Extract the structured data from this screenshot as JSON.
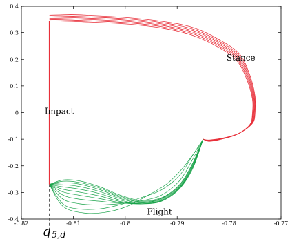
{
  "chart_data": {
    "type": "line",
    "title": "",
    "xlabel": "",
    "ylabel": "",
    "xlim": [
      -0.82,
      -0.77
    ],
    "ylim": [
      -0.4,
      0.4
    ],
    "xticks": [
      -0.82,
      -0.81,
      -0.8,
      -0.79,
      -0.78,
      -0.77
    ],
    "xtick_labels": [
      "-0.82",
      "-0.81",
      "-0.8",
      "-0.79",
      "-0.78",
      "-0.77"
    ],
    "yticks": [
      -0.4,
      -0.3,
      -0.2,
      -0.1,
      0,
      0.1,
      0.2,
      0.3,
      0.4
    ],
    "ytick_labels": [
      "-0.4",
      "-0.3",
      "-0.2",
      "-0.1",
      "0",
      "0.1",
      "0.2",
      "0.3",
      "0.4"
    ],
    "grid": false,
    "colors": {
      "stance": "#e8303a",
      "flight": "#1aa34a",
      "impact": "#e8303a",
      "marker": "#555555"
    },
    "annotations": [
      {
        "text": "Stance",
        "x": -0.7805,
        "y": 0.195
      },
      {
        "text": "Impact",
        "x": -0.8155,
        "y": -0.005
      },
      {
        "text": "Flight",
        "x": -0.7958,
        "y": -0.383
      }
    ],
    "impact_line": {
      "x": -0.8146,
      "y_from": -0.27,
      "y_to": 0.345
    },
    "marker": {
      "x": -0.8146,
      "y_from": -0.27,
      "y_to": -0.4,
      "label_main": "q",
      "label_sub": "5,d"
    },
    "stance_series": [
      {
        "name": "",
        "points": [
          [
            -0.8146,
            0.345
          ],
          [
            -0.808,
            0.341
          ],
          [
            -0.8,
            0.333
          ],
          [
            -0.793,
            0.318
          ],
          [
            -0.787,
            0.29
          ],
          [
            -0.782,
            0.245
          ],
          [
            -0.7785,
            0.195
          ],
          [
            -0.7765,
            0.12
          ],
          [
            -0.7755,
            0.05
          ],
          [
            -0.7755,
            0.0
          ],
          [
            -0.776,
            -0.045
          ],
          [
            -0.7785,
            -0.082
          ],
          [
            -0.7815,
            -0.1
          ],
          [
            -0.7838,
            -0.108
          ],
          [
            -0.785,
            -0.1
          ]
        ]
      },
      {
        "name": "",
        "points": [
          [
            -0.8146,
            0.35
          ],
          [
            -0.808,
            0.346
          ],
          [
            -0.8,
            0.338
          ],
          [
            -0.793,
            0.323
          ],
          [
            -0.787,
            0.296
          ],
          [
            -0.782,
            0.251
          ],
          [
            -0.7784,
            0.2
          ],
          [
            -0.7764,
            0.124
          ],
          [
            -0.7754,
            0.052
          ],
          [
            -0.7754,
            0.0
          ],
          [
            -0.7759,
            -0.044
          ],
          [
            -0.7784,
            -0.081
          ],
          [
            -0.7814,
            -0.099
          ],
          [
            -0.7838,
            -0.107
          ],
          [
            -0.785,
            -0.1
          ]
        ]
      },
      {
        "name": "",
        "points": [
          [
            -0.8146,
            0.355
          ],
          [
            -0.808,
            0.351
          ],
          [
            -0.8,
            0.343
          ],
          [
            -0.793,
            0.328
          ],
          [
            -0.787,
            0.302
          ],
          [
            -0.782,
            0.257
          ],
          [
            -0.7783,
            0.205
          ],
          [
            -0.7763,
            0.128
          ],
          [
            -0.7753,
            0.054
          ],
          [
            -0.7753,
            0.0
          ],
          [
            -0.7758,
            -0.043
          ],
          [
            -0.7783,
            -0.08
          ],
          [
            -0.7813,
            -0.098
          ],
          [
            -0.7838,
            -0.106
          ],
          [
            -0.785,
            -0.1
          ]
        ]
      },
      {
        "name": "",
        "points": [
          [
            -0.8146,
            0.36
          ],
          [
            -0.808,
            0.356
          ],
          [
            -0.8,
            0.348
          ],
          [
            -0.793,
            0.333
          ],
          [
            -0.787,
            0.308
          ],
          [
            -0.782,
            0.263
          ],
          [
            -0.7782,
            0.21
          ],
          [
            -0.7762,
            0.132
          ],
          [
            -0.7752,
            0.056
          ],
          [
            -0.7752,
            0.0
          ],
          [
            -0.7757,
            -0.042
          ],
          [
            -0.7782,
            -0.079
          ],
          [
            -0.7812,
            -0.097
          ],
          [
            -0.7838,
            -0.105
          ],
          [
            -0.785,
            -0.1
          ]
        ]
      },
      {
        "name": "",
        "points": [
          [
            -0.8146,
            0.365
          ],
          [
            -0.808,
            0.361
          ],
          [
            -0.8,
            0.353
          ],
          [
            -0.793,
            0.338
          ],
          [
            -0.787,
            0.314
          ],
          [
            -0.782,
            0.269
          ],
          [
            -0.7781,
            0.215
          ],
          [
            -0.7761,
            0.136
          ],
          [
            -0.7751,
            0.058
          ],
          [
            -0.7751,
            0.0
          ],
          [
            -0.7756,
            -0.041
          ],
          [
            -0.7781,
            -0.078
          ],
          [
            -0.7811,
            -0.096
          ],
          [
            -0.7838,
            -0.104
          ],
          [
            -0.785,
            -0.1
          ]
        ]
      },
      {
        "name": "",
        "points": [
          [
            -0.8146,
            0.37
          ],
          [
            -0.808,
            0.366
          ],
          [
            -0.8,
            0.358
          ],
          [
            -0.793,
            0.343
          ],
          [
            -0.787,
            0.32
          ],
          [
            -0.782,
            0.275
          ],
          [
            -0.778,
            0.22
          ],
          [
            -0.776,
            0.14
          ],
          [
            -0.775,
            0.06
          ],
          [
            -0.775,
            0.0
          ],
          [
            -0.7755,
            -0.04
          ],
          [
            -0.778,
            -0.077
          ],
          [
            -0.781,
            -0.095
          ],
          [
            -0.7838,
            -0.103
          ],
          [
            -0.785,
            -0.1
          ]
        ]
      }
    ],
    "flight_series": [
      {
        "name": "",
        "points": [
          [
            -0.8146,
            -0.27
          ],
          [
            -0.812,
            -0.253
          ],
          [
            -0.809,
            -0.256
          ],
          [
            -0.805,
            -0.278
          ],
          [
            -0.801,
            -0.31
          ],
          [
            -0.797,
            -0.33
          ],
          [
            -0.793,
            -0.32
          ],
          [
            -0.7895,
            -0.27
          ],
          [
            -0.787,
            -0.19
          ],
          [
            -0.785,
            -0.1
          ]
        ]
      },
      {
        "name": "",
        "points": [
          [
            -0.8146,
            -0.27
          ],
          [
            -0.812,
            -0.258
          ],
          [
            -0.809,
            -0.262
          ],
          [
            -0.805,
            -0.283
          ],
          [
            -0.801,
            -0.314
          ],
          [
            -0.797,
            -0.333
          ],
          [
            -0.793,
            -0.323
          ],
          [
            -0.7895,
            -0.274
          ],
          [
            -0.787,
            -0.195
          ],
          [
            -0.785,
            -0.1
          ]
        ]
      },
      {
        "name": "",
        "points": [
          [
            -0.8146,
            -0.27
          ],
          [
            -0.812,
            -0.264
          ],
          [
            -0.809,
            -0.268
          ],
          [
            -0.805,
            -0.289
          ],
          [
            -0.801,
            -0.318
          ],
          [
            -0.797,
            -0.336
          ],
          [
            -0.793,
            -0.326
          ],
          [
            -0.7895,
            -0.278
          ],
          [
            -0.787,
            -0.2
          ],
          [
            -0.785,
            -0.1
          ]
        ]
      },
      {
        "name": "",
        "points": [
          [
            -0.8146,
            -0.27
          ],
          [
            -0.812,
            -0.271
          ],
          [
            -0.809,
            -0.277
          ],
          [
            -0.805,
            -0.296
          ],
          [
            -0.801,
            -0.323
          ],
          [
            -0.797,
            -0.339
          ],
          [
            -0.793,
            -0.329
          ],
          [
            -0.7895,
            -0.282
          ],
          [
            -0.787,
            -0.205
          ],
          [
            -0.785,
            -0.1
          ]
        ]
      },
      {
        "name": "",
        "points": [
          [
            -0.8146,
            -0.27
          ],
          [
            -0.812,
            -0.279
          ],
          [
            -0.809,
            -0.287
          ],
          [
            -0.805,
            -0.304
          ],
          [
            -0.801,
            -0.329
          ],
          [
            -0.797,
            -0.342
          ],
          [
            -0.793,
            -0.332
          ],
          [
            -0.7895,
            -0.285
          ],
          [
            -0.787,
            -0.21
          ],
          [
            -0.785,
            -0.1
          ]
        ]
      },
      {
        "name": "",
        "points": [
          [
            -0.8146,
            -0.27
          ],
          [
            -0.812,
            -0.288
          ],
          [
            -0.809,
            -0.298
          ],
          [
            -0.805,
            -0.313
          ],
          [
            -0.801,
            -0.334
          ],
          [
            -0.797,
            -0.343
          ],
          [
            -0.793,
            -0.333
          ],
          [
            -0.7895,
            -0.285
          ],
          [
            -0.787,
            -0.205
          ],
          [
            -0.785,
            -0.1
          ]
        ]
      },
      {
        "name": "",
        "points": [
          [
            -0.8146,
            -0.27
          ],
          [
            -0.812,
            -0.298
          ],
          [
            -0.809,
            -0.31
          ],
          [
            -0.805,
            -0.323
          ],
          [
            -0.801,
            -0.338
          ],
          [
            -0.797,
            -0.343
          ],
          [
            -0.793,
            -0.33
          ],
          [
            -0.7895,
            -0.28
          ],
          [
            -0.787,
            -0.2
          ],
          [
            -0.785,
            -0.1
          ]
        ]
      },
      {
        "name": "",
        "points": [
          [
            -0.8146,
            -0.27
          ],
          [
            -0.812,
            -0.31
          ],
          [
            -0.809,
            -0.325
          ],
          [
            -0.805,
            -0.333
          ],
          [
            -0.801,
            -0.34
          ],
          [
            -0.797,
            -0.34
          ],
          [
            -0.793,
            -0.322
          ],
          [
            -0.7895,
            -0.27
          ],
          [
            -0.787,
            -0.19
          ],
          [
            -0.785,
            -0.1
          ]
        ]
      },
      {
        "name": "",
        "points": [
          [
            -0.8146,
            -0.27
          ],
          [
            -0.812,
            -0.325
          ],
          [
            -0.809,
            -0.342
          ],
          [
            -0.805,
            -0.347
          ],
          [
            -0.801,
            -0.342
          ],
          [
            -0.797,
            -0.332
          ],
          [
            -0.793,
            -0.31
          ],
          [
            -0.7895,
            -0.255
          ],
          [
            -0.787,
            -0.175
          ],
          [
            -0.785,
            -0.1
          ]
        ]
      },
      {
        "name": "",
        "points": [
          [
            -0.8146,
            -0.27
          ],
          [
            -0.812,
            -0.343
          ],
          [
            -0.809,
            -0.362
          ],
          [
            -0.805,
            -0.362
          ],
          [
            -0.801,
            -0.346
          ],
          [
            -0.797,
            -0.32
          ],
          [
            -0.793,
            -0.29
          ],
          [
            -0.7895,
            -0.235
          ],
          [
            -0.787,
            -0.16
          ],
          [
            -0.785,
            -0.1
          ]
        ]
      },
      {
        "name": "",
        "points": [
          [
            -0.8146,
            -0.27
          ],
          [
            -0.812,
            -0.352
          ],
          [
            -0.808,
            -0.377
          ],
          [
            -0.804,
            -0.375
          ],
          [
            -0.8,
            -0.355
          ],
          [
            -0.796,
            -0.315
          ],
          [
            -0.792,
            -0.268
          ],
          [
            -0.789,
            -0.21
          ],
          [
            -0.7865,
            -0.145
          ],
          [
            -0.785,
            -0.1
          ]
        ]
      }
    ]
  }
}
